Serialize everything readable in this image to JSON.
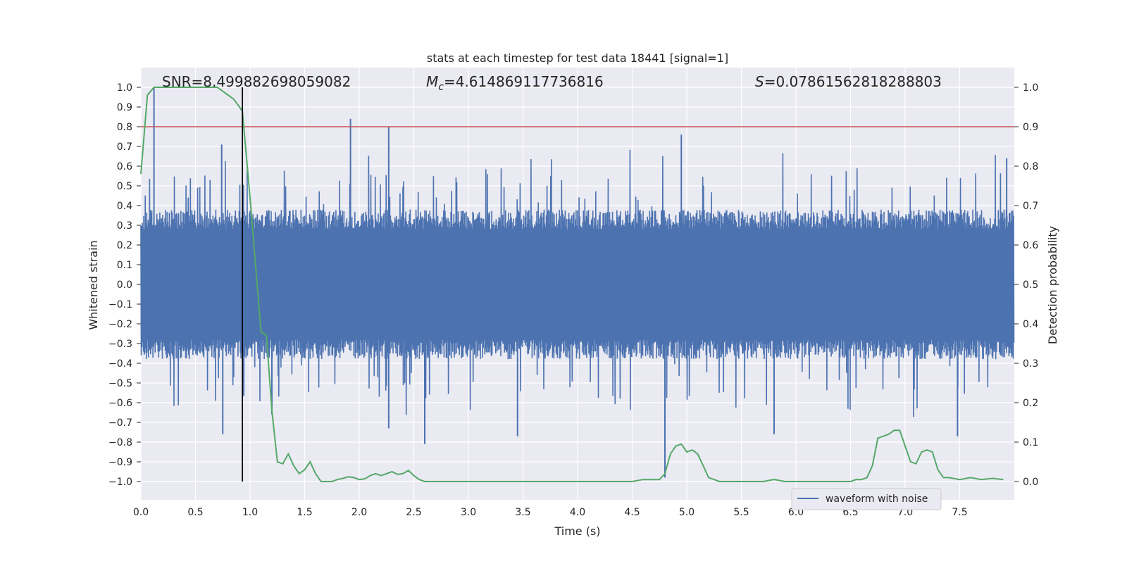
{
  "chart_data": {
    "type": "line",
    "title": "stats at each timestep for test data 18441 [signal=1]",
    "xlabel": "Time (s)",
    "ylabel_left": "Whitened strain",
    "ylabel_right": "Detection probability",
    "xlim": [
      0.0,
      8.0
    ],
    "ylim_left": [
      -1.08,
      1.1
    ],
    "ylim_right": [
      -0.05,
      1.05
    ],
    "xticks": [
      "0.0",
      "0.5",
      "1.0",
      "1.5",
      "2.0",
      "2.5",
      "3.0",
      "3.5",
      "4.0",
      "4.5",
      "5.0",
      "5.5",
      "6.0",
      "6.5",
      "7.0",
      "7.5"
    ],
    "yticks_left": [
      "1.0",
      "0.9",
      "0.8",
      "0.7",
      "0.6",
      "0.5",
      "0.4",
      "0.3",
      "0.2",
      "0.1",
      "0.0",
      "-0.1",
      "-0.2",
      "-0.3",
      "-0.4",
      "-0.5",
      "-0.6",
      "-0.7",
      "-0.8",
      "-0.9",
      "-1.0"
    ],
    "yticks_right": [
      "1.0",
      "0.9",
      "0.8",
      "0.7",
      "0.6",
      "0.5",
      "0.4",
      "0.3",
      "0.2",
      "0.1",
      "0.0"
    ],
    "grid": true,
    "stats": {
      "snr": "SNR=8.499882698059082",
      "mc_symbol": "M",
      "mc_sub": "c",
      "mc_value": "=4.614869117736816",
      "s_symbol": "S",
      "s_value": "=0.07861562818288803"
    },
    "legend": {
      "position": "lower-right",
      "entries": [
        "waveform with noise"
      ]
    },
    "threshold_line": {
      "y_right": 0.9,
      "color": "#c44e52"
    },
    "event_marker": {
      "x": 0.93,
      "color": "#000000"
    },
    "colors": {
      "plot_background": "#eaeaf2",
      "waveform": "#4c72b0",
      "probability": "#55a868",
      "grid": "#ffffff"
    },
    "series": [
      {
        "name": "waveform with noise",
        "axis": "left",
        "envelope_typical": 0.33,
        "peaks": [
          {
            "x": 0.12,
            "y": 1.0
          },
          {
            "x": 0.75,
            "y": -0.76
          },
          {
            "x": 0.74,
            "y": 0.71
          },
          {
            "x": 0.94,
            "y": -0.56
          },
          {
            "x": 1.2,
            "y": -0.66
          },
          {
            "x": 1.92,
            "y": 0.84
          },
          {
            "x": 2.27,
            "y": 0.8
          },
          {
            "x": 2.27,
            "y": -0.73
          },
          {
            "x": 2.6,
            "y": -0.81
          },
          {
            "x": 3.45,
            "y": -0.77
          },
          {
            "x": 4.8,
            "y": -0.98
          },
          {
            "x": 4.95,
            "y": 0.76
          },
          {
            "x": 5.8,
            "y": -0.76
          },
          {
            "x": 7.48,
            "y": -0.77
          },
          {
            "x": 7.93,
            "y": 0.64
          }
        ]
      },
      {
        "name": "",
        "axis": "right",
        "x": [
          0.0,
          0.06,
          0.12,
          0.2,
          0.3,
          0.4,
          0.5,
          0.6,
          0.7,
          0.8,
          0.85,
          0.93,
          1.0,
          1.1,
          1.15,
          1.2,
          1.25,
          1.3,
          1.35,
          1.4,
          1.45,
          1.5,
          1.55,
          1.6,
          1.65,
          1.7,
          1.75,
          1.8,
          1.85,
          1.9,
          1.95,
          2.0,
          2.05,
          2.1,
          2.15,
          2.2,
          2.25,
          2.3,
          2.35,
          2.4,
          2.45,
          2.5,
          2.55,
          2.6,
          2.7,
          2.8,
          3.0,
          3.5,
          4.0,
          4.5,
          4.6,
          4.75,
          4.8,
          4.85,
          4.9,
          4.95,
          5.0,
          5.05,
          5.1,
          5.15,
          5.2,
          5.25,
          5.3,
          5.4,
          5.5,
          5.6,
          5.7,
          5.8,
          5.9,
          6.0,
          6.1,
          6.2,
          6.3,
          6.4,
          6.5,
          6.55,
          6.6,
          6.65,
          6.7,
          6.75,
          6.8,
          6.85,
          6.9,
          6.95,
          7.0,
          7.05,
          7.1,
          7.15,
          7.2,
          7.25,
          7.3,
          7.35,
          7.4,
          7.5,
          7.6,
          7.7,
          7.8,
          7.9
        ],
        "y": [
          0.78,
          0.98,
          1.0,
          1.0,
          1.0,
          1.0,
          1.0,
          1.0,
          1.0,
          0.98,
          0.97,
          0.94,
          0.72,
          0.38,
          0.37,
          0.18,
          0.05,
          0.045,
          0.07,
          0.04,
          0.02,
          0.03,
          0.05,
          0.02,
          0.0,
          0.0,
          0.0,
          0.005,
          0.008,
          0.012,
          0.01,
          0.005,
          0.007,
          0.015,
          0.02,
          0.015,
          0.02,
          0.025,
          0.018,
          0.02,
          0.028,
          0.015,
          0.005,
          0.0,
          0.0,
          0.0,
          0.0,
          0.0,
          0.0,
          0.0,
          0.005,
          0.005,
          0.02,
          0.07,
          0.09,
          0.095,
          0.075,
          0.08,
          0.07,
          0.04,
          0.01,
          0.005,
          0.0,
          0.0,
          0.0,
          0.0,
          0.0,
          0.005,
          0.0,
          0.0,
          0.0,
          0.0,
          0.0,
          0.0,
          0.0,
          0.005,
          0.005,
          0.01,
          0.04,
          0.11,
          0.115,
          0.12,
          0.13,
          0.13,
          0.09,
          0.05,
          0.045,
          0.075,
          0.08,
          0.075,
          0.03,
          0.01,
          0.01,
          0.005,
          0.01,
          0.005,
          0.008,
          0.005
        ]
      }
    ]
  }
}
